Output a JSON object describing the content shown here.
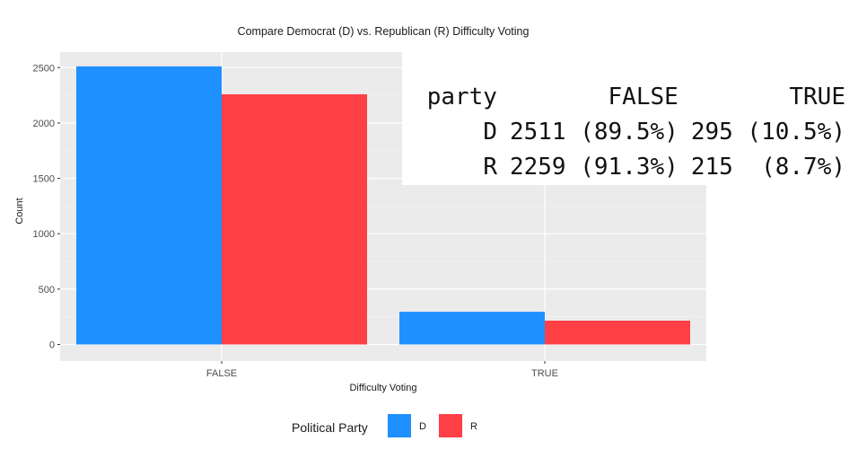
{
  "chart_data": {
    "type": "bar",
    "title": "Compare Democrat (D) vs. Republican (R) Difficulty Voting",
    "xlabel": "Difficulty Voting",
    "ylabel": "Count",
    "categories": [
      "FALSE",
      "TRUE"
    ],
    "series": [
      {
        "name": "D",
        "color": "#1f90ff",
        "values": [
          2511,
          295
        ]
      },
      {
        "name": "R",
        "color": "#ff3f46",
        "values": [
          2259,
          215
        ]
      }
    ],
    "ylim": [
      -150,
      2640
    ],
    "yticks": [
      0,
      500,
      1000,
      1500,
      2000,
      2500
    ],
    "grid": true,
    "legend": {
      "title": "Political Party",
      "position": "bottom",
      "items": [
        "D",
        "R"
      ]
    }
  },
  "table": {
    "headers": [
      "party",
      "FALSE",
      "TRUE"
    ],
    "rows": [
      [
        "D",
        "2511 (89.5%)",
        "295 (10.5%)"
      ],
      [
        "R",
        "2259 (91.3%)",
        "215  (8.7%)"
      ]
    ]
  }
}
